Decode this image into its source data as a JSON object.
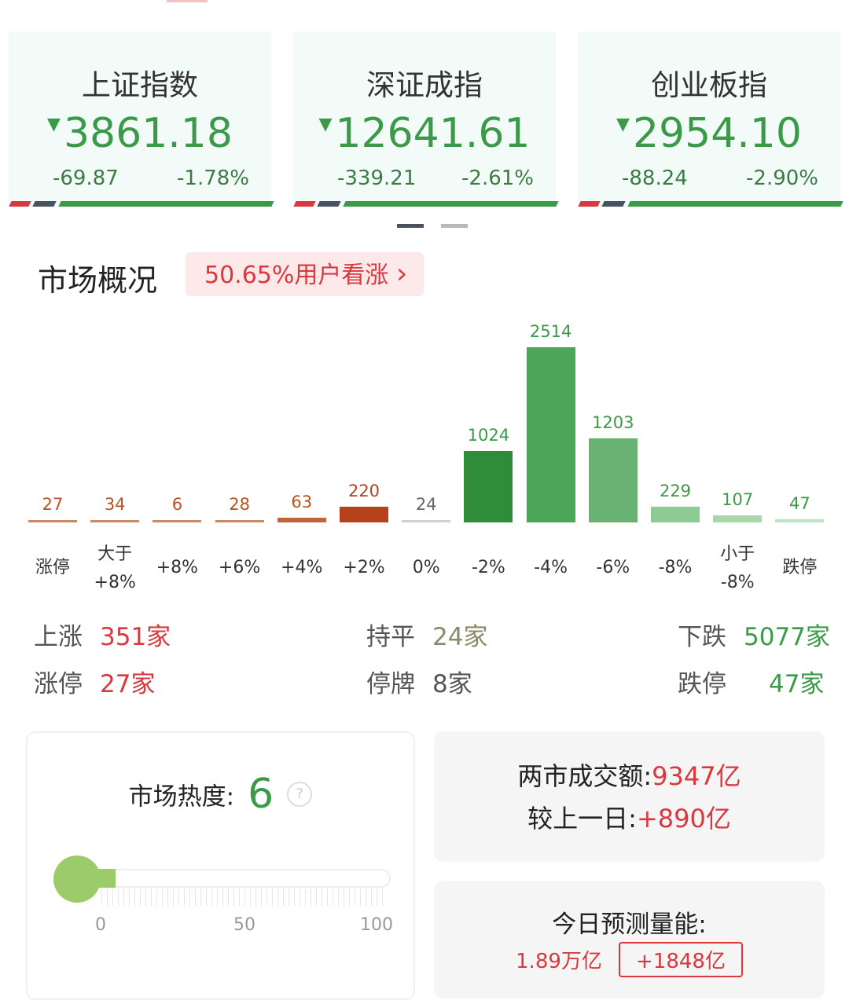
{
  "indices": [
    {
      "name": "上证指数",
      "price": "3861.18",
      "change": "-69.87",
      "pct": "-1.78%"
    },
    {
      "name": "深证成指",
      "price": "12641.61",
      "change": "-339.21",
      "pct": "-2.61%"
    },
    {
      "name": "创业板指",
      "price": "2954.10",
      "change": "-88.24",
      "pct": "-2.90%"
    }
  ],
  "down_arrow": "▼",
  "colors": {
    "up": "#d9383f",
    "down": "#3a9a48",
    "flat": "#8a8a6a"
  },
  "market": {
    "title": "市场概况",
    "sentiment": "50.65%用户看涨",
    "sentiment_chevron": "›"
  },
  "chart_data": {
    "type": "bar",
    "categories": [
      "涨停",
      "大于\n+8%",
      "+8%",
      "+6%",
      "+4%",
      "+2%",
      "0%",
      "-2%",
      "-4%",
      "-6%",
      "-8%",
      "小于\n-8%",
      "跌停"
    ],
    "values": [
      27,
      34,
      6,
      28,
      63,
      220,
      24,
      1024,
      2514,
      1203,
      229,
      107,
      47
    ],
    "bar_colors": [
      "#c98a68",
      "#c98a68",
      "#c98a68",
      "#c98a68",
      "#c0643c",
      "#b5421b",
      "#cfcfcf",
      "#2f8d3a",
      "#4ba65a",
      "#68b373",
      "#8ccb92",
      "#a6d8aa",
      "#bde3c0"
    ],
    "label_colors": [
      "#b5521f",
      "#b5521f",
      "#b5521f",
      "#b5521f",
      "#b5521f",
      "#b5421b",
      "#666666",
      "#3a9a48",
      "#3a9a48",
      "#3a9a48",
      "#3a9a48",
      "#3a9a48",
      "#3a9a48"
    ]
  },
  "stats": [
    {
      "label": "上涨",
      "value": "351家",
      "color": "#d9383f"
    },
    {
      "label": "持平",
      "value": "24家",
      "color": "#8a8a6a"
    },
    {
      "label": "下跌",
      "value": "5077家",
      "color": "#3a9a48"
    },
    {
      "label": "涨停",
      "value": "27家",
      "color": "#d9383f"
    },
    {
      "label": "停牌",
      "value": "8家",
      "color": "#555555"
    },
    {
      "label": "跌停",
      "value": "47家",
      "color": "#3a9a48"
    }
  ],
  "heat": {
    "label": "市场热度:",
    "value": "6",
    "level": 6,
    "ticks": [
      "0",
      "50",
      "100"
    ],
    "help_icon": "?"
  },
  "turnover": {
    "label1": "两市成交额:",
    "value1": "9347亿",
    "label2": "较上一日:",
    "value2": "+890亿"
  },
  "forecast": {
    "label": "今日预测量能:",
    "value": "1.89万亿",
    "diff": "+1848亿"
  }
}
